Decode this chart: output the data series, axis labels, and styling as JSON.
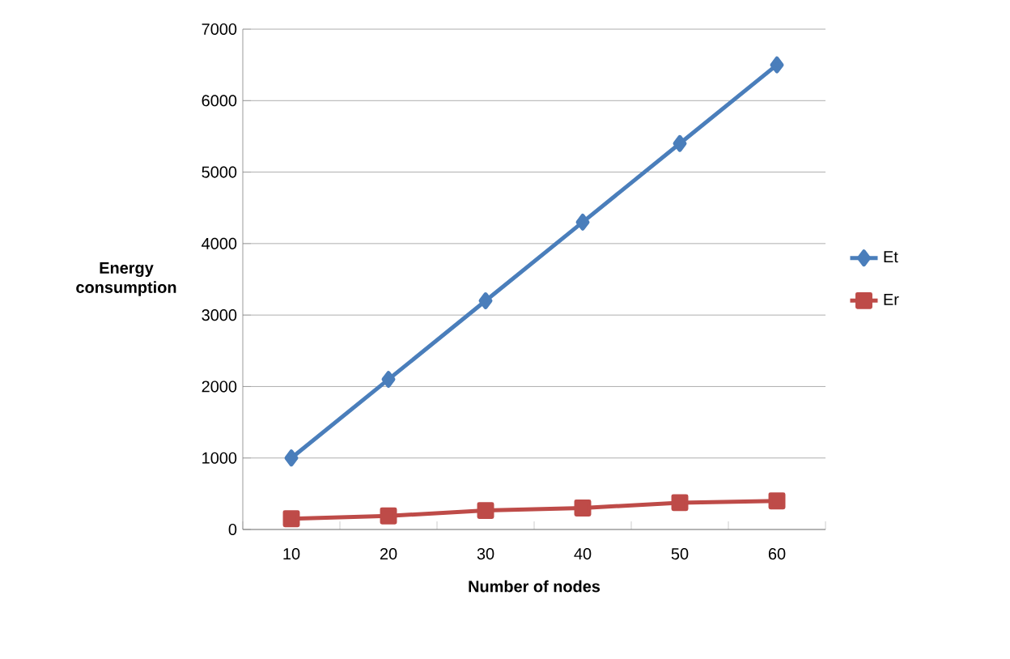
{
  "chart_data": {
    "type": "line",
    "xlabel": "Number of nodes",
    "ylabel": "Energy consumption",
    "categories": [
      "10",
      "20",
      "30",
      "40",
      "50",
      "60"
    ],
    "series": [
      {
        "name": "Et",
        "color": "#4a7ebb",
        "marker": "diamond",
        "values": [
          1000,
          2100,
          3200,
          4300,
          5400,
          6500
        ]
      },
      {
        "name": "Er",
        "color": "#be4b48",
        "marker": "square",
        "values": [
          150,
          190,
          265,
          300,
          375,
          400
        ]
      }
    ],
    "ylim": [
      0,
      7000
    ],
    "yticks": [
      0,
      1000,
      2000,
      3000,
      4000,
      5000,
      6000,
      7000
    ],
    "grid": "y",
    "legend": "right",
    "line_style": "solid"
  }
}
